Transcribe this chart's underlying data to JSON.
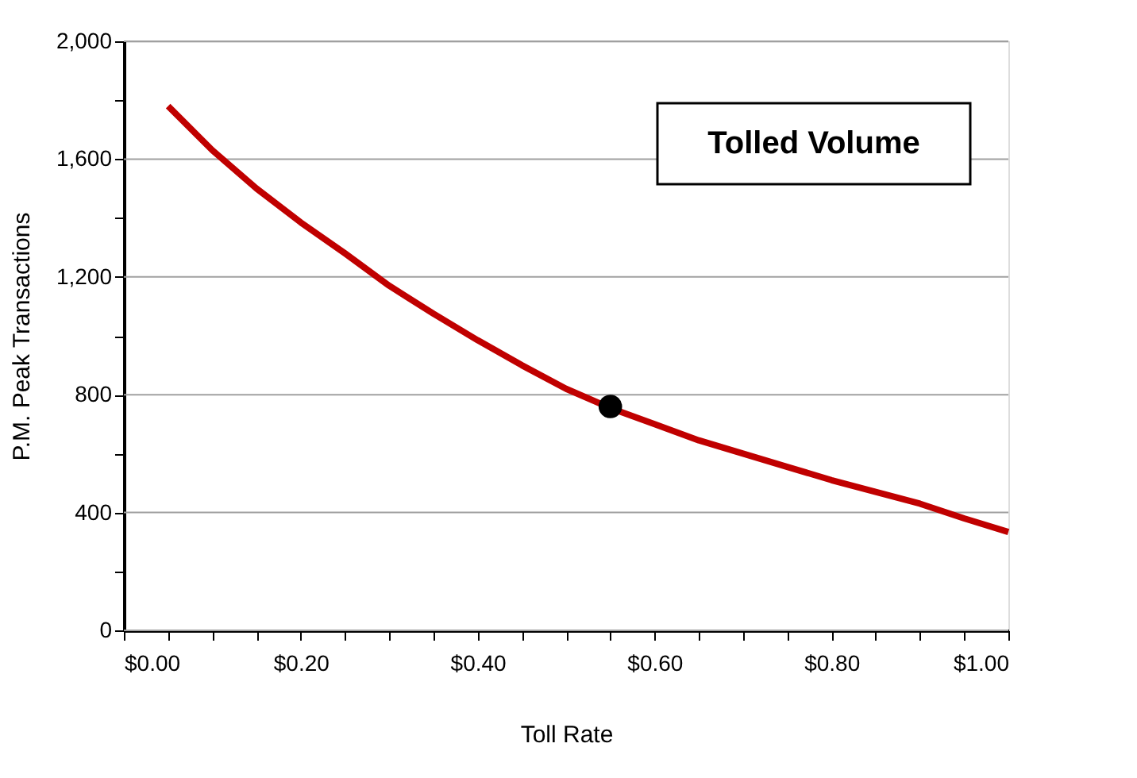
{
  "chart_data": {
    "type": "line",
    "xlabel": "Toll Rate",
    "ylabel": "P.M. Peak Transactions",
    "annotations": [
      "Tolled Volume"
    ],
    "series": [
      {
        "color": "#c00000",
        "x": [
          0.05,
          0.1,
          0.15,
          0.2,
          0.25,
          0.3,
          0.35,
          0.4,
          0.45,
          0.5,
          0.55,
          0.6,
          0.65,
          0.7,
          0.75,
          0.8,
          0.85,
          0.9,
          0.95,
          1.0
        ],
        "values": [
          1780,
          1630,
          1500,
          1385,
          1280,
          1170,
          1075,
          985,
          900,
          820,
          755,
          700,
          645,
          600,
          555,
          510,
          470,
          430,
          380,
          334
        ]
      },
      {
        "type": "scatter",
        "color": "#000000",
        "x": [
          0.55
        ],
        "values": [
          760
        ],
        "marker": "circle"
      }
    ],
    "xlim": [
      0,
      1.0
    ],
    "xticks": [
      {
        "value": 0,
        "label": "$0.00"
      },
      {
        "value": 0.05,
        "label": null
      },
      {
        "value": 0.1,
        "label": null
      },
      {
        "value": 0.15,
        "label": null
      },
      {
        "value": 0.2,
        "label": "$0.20"
      },
      {
        "value": 0.25,
        "label": null
      },
      {
        "value": 0.3,
        "label": null
      },
      {
        "value": 0.35,
        "label": null
      },
      {
        "value": 0.4,
        "label": "$0.40"
      },
      {
        "value": 0.45,
        "label": null
      },
      {
        "value": 0.5,
        "label": null
      },
      {
        "value": 0.55,
        "label": null
      },
      {
        "value": 0.6,
        "label": "$0.60"
      },
      {
        "value": 0.65,
        "label": null
      },
      {
        "value": 0.7,
        "label": null
      },
      {
        "value": 0.75,
        "label": null
      },
      {
        "value": 0.8,
        "label": "$0.80"
      },
      {
        "value": 0.85,
        "label": null
      },
      {
        "value": 0.9,
        "label": null
      },
      {
        "value": 0.95,
        "label": null
      },
      {
        "value": 1.0,
        "label": "$1.00"
      }
    ],
    "ylim": [
      0,
      2000
    ],
    "yticks": [
      {
        "value": 0,
        "label": "0"
      },
      {
        "value": 200,
        "label": null
      },
      {
        "value": 400,
        "label": "400"
      },
      {
        "value": 600,
        "label": null
      },
      {
        "value": 800,
        "label": "800"
      },
      {
        "value": 1000,
        "label": null
      },
      {
        "value": 1200,
        "label": "1,200"
      },
      {
        "value": 1400,
        "label": null
      },
      {
        "value": 1600,
        "label": "1,600"
      },
      {
        "value": 1800,
        "label": null
      },
      {
        "value": 2000,
        "label": "2,000"
      }
    ],
    "grid": "y"
  }
}
